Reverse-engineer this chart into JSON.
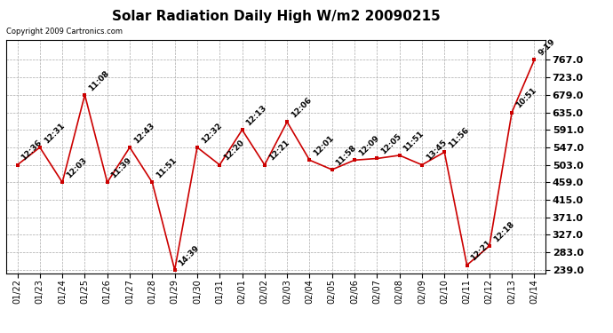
{
  "title": "Solar Radiation Daily High W/m2 20090215",
  "copyright": "Copyright 2009 Cartronics.com",
  "dates": [
    "01/22",
    "01/23",
    "01/24",
    "01/25",
    "01/26",
    "01/27",
    "01/28",
    "01/29",
    "01/30",
    "01/31",
    "02/01",
    "02/02",
    "02/03",
    "02/04",
    "02/05",
    "02/06",
    "02/07",
    "02/08",
    "02/09",
    "02/10",
    "02/11",
    "02/12",
    "02/13",
    "02/14"
  ],
  "values": [
    503,
    547,
    459,
    679,
    459,
    547,
    459,
    239,
    547,
    503,
    591,
    503,
    611,
    515,
    491,
    515,
    519,
    527,
    503,
    535,
    251,
    299,
    635,
    767
  ],
  "labels": [
    "12:36",
    "12:31",
    "12:03",
    "11:08",
    "11:39",
    "12:43",
    "11:51",
    "14:39",
    "12:32",
    "12:20",
    "12:13",
    "12:21",
    "12:06",
    "12:01",
    "11:58",
    "12:09",
    "12:05",
    "11:51",
    "13:45",
    "11:56",
    "12:21",
    "12:18",
    "10:51",
    "9:19"
  ],
  "line_color": "#cc0000",
  "marker_color": "#cc0000",
  "bg_color": "#ffffff",
  "plot_bg_color": "#ffffff",
  "grid_color": "#aaaaaa",
  "title_fontsize": 11,
  "label_fontsize": 6.5,
  "tick_fontsize": 7,
  "ytick_fontsize": 8,
  "ymin": 239.0,
  "ymax": 767.0,
  "yticks": [
    239.0,
    283.0,
    327.0,
    371.0,
    415.0,
    459.0,
    503.0,
    547.0,
    591.0,
    635.0,
    679.0,
    723.0,
    767.0
  ]
}
